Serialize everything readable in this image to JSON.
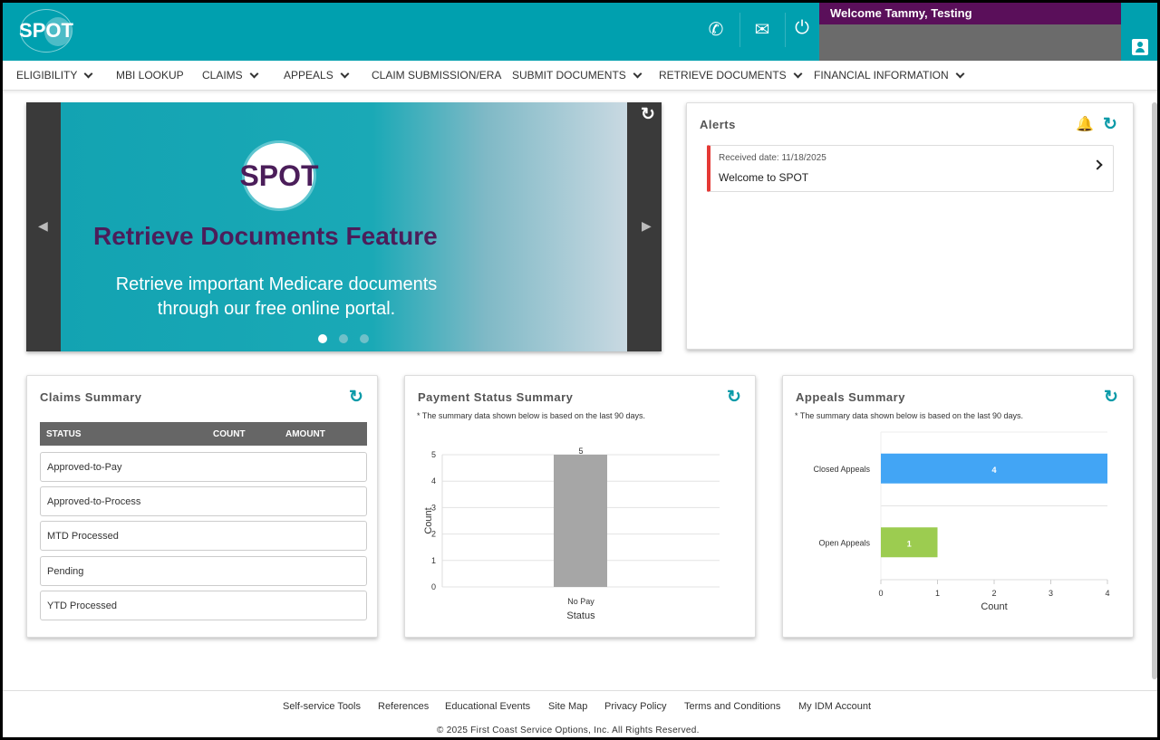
{
  "header": {
    "logo": "SPOT",
    "welcome": "Welcome Tammy, Testing",
    "icons": [
      "phone-icon",
      "mail-icon",
      "power-icon",
      "user-icon"
    ]
  },
  "nav": [
    {
      "label": "ELIGIBILITY",
      "dropdown": true
    },
    {
      "label": "MBI LOOKUP",
      "dropdown": false
    },
    {
      "label": "CLAIMS",
      "dropdown": true
    },
    {
      "label": "APPEALS",
      "dropdown": true
    },
    {
      "label": "CLAIM SUBMISSION/ERA",
      "dropdown": false
    },
    {
      "label": "SUBMIT DOCUMENTS",
      "dropdown": true
    },
    {
      "label": "RETRIEVE DOCUMENTS",
      "dropdown": true
    },
    {
      "label": "FINANCIAL INFORMATION",
      "dropdown": true
    }
  ],
  "banner": {
    "logo": "SPOT",
    "headline": "Retrieve Documents Feature",
    "subtext": "Retrieve important Medicare documents through our free online portal.",
    "slides": 3,
    "active_slide": 1
  },
  "alerts": {
    "title": "Alerts",
    "items": [
      {
        "date": "Received date: 11/18/2025",
        "message": "Welcome to SPOT"
      }
    ]
  },
  "claims": {
    "title": "Claims Summary",
    "columns": [
      "STATUS",
      "COUNT",
      "AMOUNT"
    ],
    "rows": [
      "Approved-to-Pay",
      "Approved-to-Process",
      "MTD Processed",
      "Pending",
      "YTD Processed"
    ]
  },
  "payment": {
    "title": "Payment Status Summary",
    "note": "* The summary data shown below is based on the last 90 days."
  },
  "appeals": {
    "title": "Appeals Summary",
    "note": "* The summary data shown below is based on the last 90 days."
  },
  "chart_data": [
    {
      "type": "bar",
      "orientation": "vertical",
      "categories": [
        "No Pay"
      ],
      "values": [
        5
      ],
      "xlabel": "Status",
      "ylabel": "Count",
      "ylim": [
        0,
        5
      ],
      "yticks": [
        0,
        1,
        2,
        3,
        4,
        5
      ],
      "colors": [
        "#a6a6a6"
      ],
      "data_labels": true,
      "grid": true
    },
    {
      "type": "bar",
      "orientation": "horizontal",
      "categories": [
        "Closed Appeals",
        "Open Appeals"
      ],
      "values": [
        4,
        1
      ],
      "xlabel": "Count",
      "xlim": [
        0,
        4
      ],
      "xticks": [
        0,
        1,
        2,
        3,
        4
      ],
      "colors": [
        "#42a5f5",
        "#9ccc50"
      ],
      "data_labels": true,
      "grid": true
    }
  ],
  "footer": {
    "links": [
      "Self-service Tools",
      "References",
      "Educational Events",
      "Site Map",
      "Privacy Policy",
      "Terms and Conditions",
      "My IDM Account"
    ],
    "copyright": "© 2025 First Coast Service Options, Inc. All Rights Reserved."
  }
}
